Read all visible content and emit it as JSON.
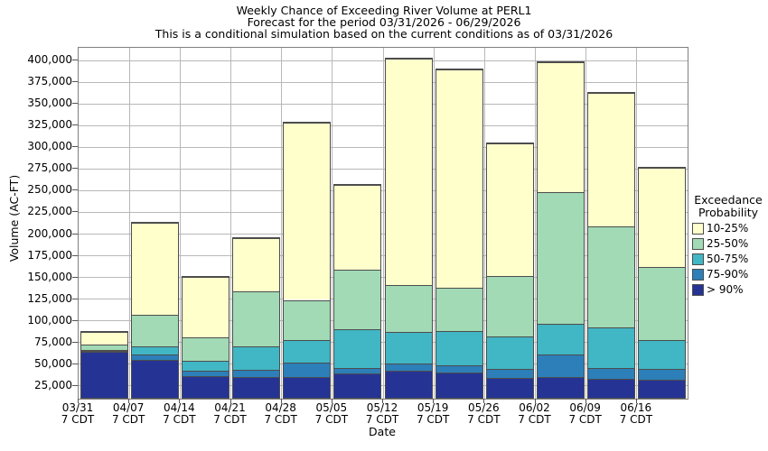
{
  "chart": {
    "title_lines": [
      "Weekly Chance of Exceeding River Volume at PERL1",
      "Forecast for the period 03/31/2026 - 06/29/2026",
      "This is a conditional simulation based on the current conditions as of 03/31/2026"
    ],
    "xlabel": "Date",
    "ylabel": "Volume (AC-FT)"
  },
  "chart_data": {
    "type": "bar",
    "stacked": true,
    "title": "Weekly Chance of Exceeding River Volume at PERL1",
    "subtitle": "Forecast for the period 03/31/2026 - 06/29/2026",
    "note": "This is a conditional simulation based on the current conditions as of 03/31/2026",
    "xlabel": "Date",
    "ylabel": "Volume (AC-FT)",
    "grid": true,
    "categories": [
      "03/31",
      "04/07",
      "04/14",
      "04/21",
      "04/28",
      "05/05",
      "05/12",
      "05/19",
      "05/26",
      "06/02",
      "06/09",
      "06/16"
    ],
    "category_sublabel": "7 CDT",
    "y_axis": {
      "plot_min": 10000,
      "plot_max": 415000,
      "tick_values": [
        25000,
        50000,
        75000,
        100000,
        125000,
        150000,
        175000,
        200000,
        225000,
        250000,
        275000,
        300000,
        325000,
        350000,
        375000,
        400000
      ],
      "tick_labels": [
        "25,000",
        "50,000",
        "75,000",
        "100,000",
        "125,000",
        "150,000",
        "175,000",
        "200,000",
        "225,000",
        "250,000",
        "275,000",
        "300,000",
        "325,000",
        "350,000",
        "375,000",
        "400,000"
      ]
    },
    "baseline_value": 10000,
    "series": [
      {
        "name": "> 90%",
        "color": "#253494",
        "cumulative_top": [
          64000,
          55000,
          36500,
          35000,
          35500,
          39000,
          42000,
          40500,
          34000,
          35000,
          33000,
          32000
        ]
      },
      {
        "name": "75-90%",
        "color": "#2c7fb8",
        "cumulative_top": [
          65000,
          60500,
          42500,
          43000,
          52000,
          45000,
          50500,
          49000,
          44000,
          61000,
          45500,
          44000
        ]
      },
      {
        "name": "50-75%",
        "color": "#41b6c4",
        "cumulative_top": [
          66000,
          70000,
          54000,
          70000,
          78000,
          90000,
          87000,
          88000,
          82000,
          96000,
          92000,
          78000
        ]
      },
      {
        "name": "25-50%",
        "color": "#a1dab4",
        "cumulative_top": [
          72000,
          107000,
          81000,
          134000,
          124000,
          159000,
          141000,
          138000,
          152000,
          248000,
          209000,
          162000
        ]
      },
      {
        "name": "10-25%",
        "color": "#ffffcc",
        "cumulative_top": [
          87000,
          213000,
          151000,
          195000,
          329000,
          257000,
          402000,
          390000,
          305000,
          398000,
          363000,
          277000
        ]
      }
    ],
    "legend": {
      "position": "right",
      "title_lines": [
        "Exceedance",
        "Probability"
      ],
      "entries": [
        {
          "label": "10-25%",
          "color": "#ffffcc"
        },
        {
          "label": "25-50%",
          "color": "#a1dab4"
        },
        {
          "label": "50-75%",
          "color": "#41b6c4"
        },
        {
          "label": "75-90%",
          "color": "#2c7fb8"
        },
        {
          "label": "> 90%",
          "color": "#253494"
        }
      ]
    }
  },
  "style_colors": {
    "gridline": "#b8b8b8",
    "plot_border": "#808080",
    "bar_border": "#4d4d4d",
    "text": "#000000",
    "background": "#ffffff"
  }
}
